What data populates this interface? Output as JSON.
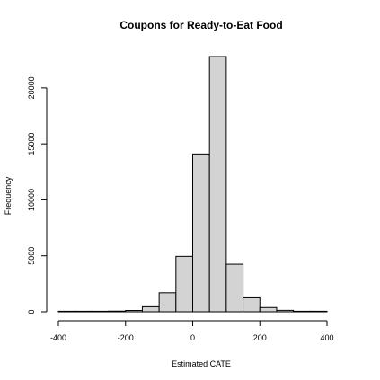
{
  "chart_data": {
    "type": "bar",
    "title": "Coupons for Ready-to-Eat Food",
    "xlabel": "Estimated CATE",
    "ylabel": "Frequency",
    "bin_edges": [
      -400,
      -350,
      -300,
      -250,
      -200,
      -150,
      -100,
      -50,
      0,
      50,
      100,
      150,
      200,
      250,
      300,
      350,
      400
    ],
    "values": [
      3,
      8,
      20,
      60,
      120,
      450,
      1700,
      4950,
      14100,
      22800,
      4250,
      1250,
      380,
      130,
      40,
      20
    ],
    "xlim": [
      -400,
      400
    ],
    "ylim": [
      0,
      22800
    ],
    "xticks": [
      -400,
      -200,
      0,
      200,
      400
    ],
    "yticks": [
      0,
      5000,
      10000,
      15000,
      20000
    ],
    "grid": false,
    "legend": "none"
  }
}
